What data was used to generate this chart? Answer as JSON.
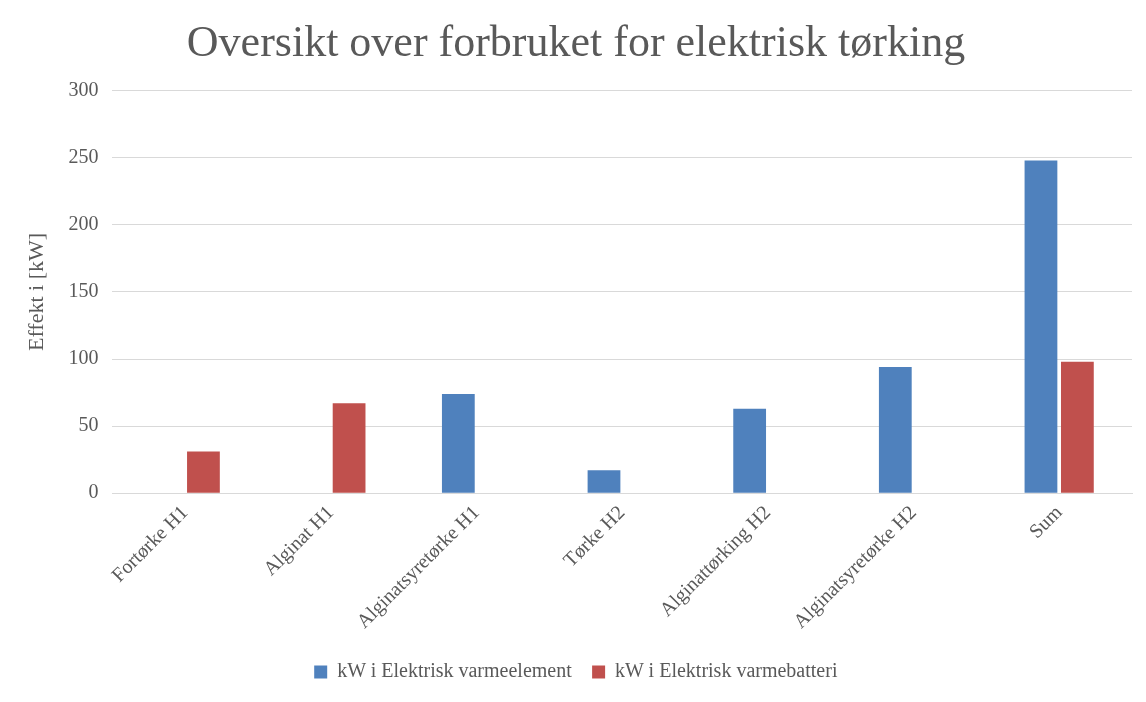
{
  "chart_data": {
    "type": "bar",
    "title": "Oversikt over forbruket for elektrisk tørking",
    "ylabel": "Effekt i [kW]",
    "categories": [
      "Fortørke H1",
      "Alginat H1",
      "Alginatsyretørke H1",
      "Tørke H2",
      "Alginattørking H2",
      "Alginatsyretørke H2",
      "Sum"
    ],
    "series": [
      {
        "name": "kW i Elektrisk varmeelement",
        "color": "#4f81bd",
        "values": [
          null,
          null,
          74,
          17,
          63,
          94,
          248
        ]
      },
      {
        "name": "kW i Elektrisk varmebatteri",
        "color": "#c0504d",
        "values": [
          31,
          67,
          null,
          null,
          null,
          null,
          98
        ]
      }
    ],
    "ylim": [
      0,
      300
    ],
    "yticks": [
      0,
      50,
      100,
      150,
      200,
      250,
      300
    ],
    "grid": "y",
    "legend": "bottom"
  }
}
